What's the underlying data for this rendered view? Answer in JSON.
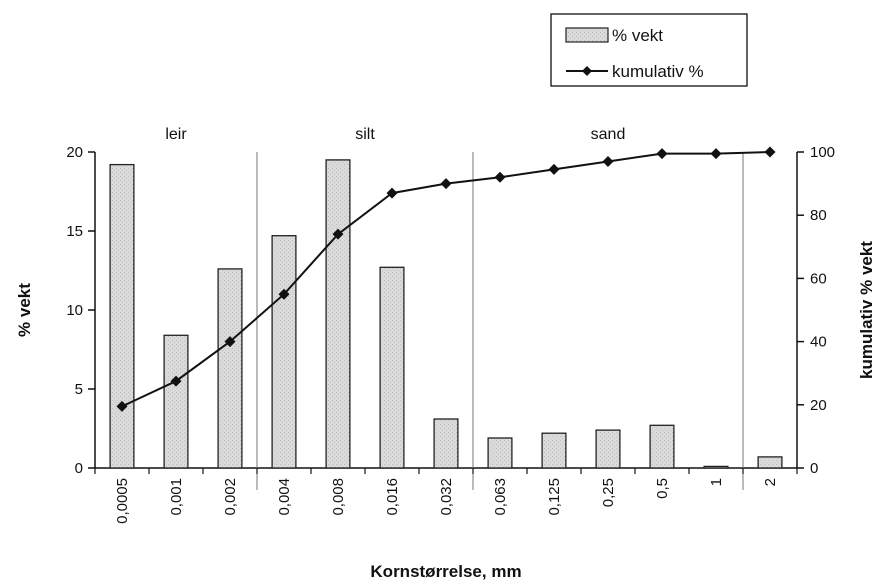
{
  "chart_data": {
    "type": "bar",
    "xlabel": "Kornstørrelse, mm",
    "ylabel": "% vekt",
    "y2label": "kumulativ % vekt",
    "categories": [
      "0,0005",
      "0,001",
      "0,002",
      "0,004",
      "0,008",
      "0,016",
      "0,032",
      "0,063",
      "0,125",
      "0,25",
      "0,5",
      "1",
      "2"
    ],
    "series": [
      {
        "name": "% vekt",
        "type": "bar",
        "axis": "left",
        "values": [
          19.2,
          8.4,
          12.6,
          14.7,
          19.5,
          12.7,
          3.1,
          1.9,
          2.2,
          2.4,
          2.7,
          0.1,
          0.7
        ]
      },
      {
        "name": "kumulativ %",
        "type": "line",
        "axis": "right",
        "values": [
          19.5,
          27.5,
          40,
          55,
          74,
          87,
          90,
          92,
          94.5,
          97,
          99.5,
          99.5,
          100
        ]
      }
    ],
    "ylim": [
      0,
      20
    ],
    "yticks": [
      "0",
      "5",
      "10",
      "15",
      "20"
    ],
    "y2lim": [
      0,
      100
    ],
    "y2ticks": [
      "0",
      "20",
      "40",
      "60",
      "80",
      "100"
    ],
    "regions": [
      {
        "label": "leir",
        "boundary_after_index": 2
      },
      {
        "label": "silt",
        "boundary_after_index": 6
      },
      {
        "label": "sand",
        "boundary_after_index": 11
      }
    ],
    "legend_position": "top-right",
    "grid": false,
    "colors": {
      "bar_fill": "#d9d9d9",
      "bar_stroke": "#222222",
      "line": "#111111",
      "boundary": "#777777"
    }
  }
}
